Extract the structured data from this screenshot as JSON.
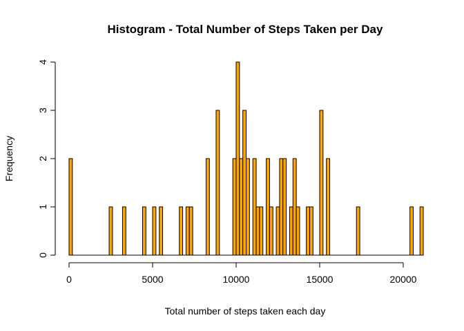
{
  "chart_data": {
    "type": "bar",
    "title": "Histogram - Total Number of Steps Taken per Day",
    "xlabel": "Total number of steps taken each day",
    "ylabel": "Frequency",
    "bar_color": "#FFA500",
    "edge_color": "#000000",
    "bin_width": 200,
    "xlim": [
      0,
      21200
    ],
    "ylim": [
      0,
      4
    ],
    "xticks": [
      0,
      5000,
      10000,
      15000,
      20000
    ],
    "xtick_labels": [
      "0",
      "5000",
      "10000",
      "15000",
      "20000"
    ],
    "yticks": [
      0,
      1,
      2,
      3,
      4
    ],
    "ytick_labels": [
      "0",
      "1",
      "2",
      "3",
      "4"
    ],
    "grid": false,
    "bins": [
      {
        "x0": 0,
        "x1": 200,
        "count": 2
      },
      {
        "x0": 2400,
        "x1": 2600,
        "count": 1
      },
      {
        "x0": 3200,
        "x1": 3400,
        "count": 1
      },
      {
        "x0": 4400,
        "x1": 4600,
        "count": 1
      },
      {
        "x0": 5000,
        "x1": 5200,
        "count": 1
      },
      {
        "x0": 5400,
        "x1": 5600,
        "count": 1
      },
      {
        "x0": 6600,
        "x1": 6800,
        "count": 1
      },
      {
        "x0": 7000,
        "x1": 7200,
        "count": 1
      },
      {
        "x0": 7200,
        "x1": 7400,
        "count": 1
      },
      {
        "x0": 8200,
        "x1": 8400,
        "count": 2
      },
      {
        "x0": 8800,
        "x1": 9000,
        "count": 3
      },
      {
        "x0": 9800,
        "x1": 10000,
        "count": 2
      },
      {
        "x0": 10000,
        "x1": 10200,
        "count": 4
      },
      {
        "x0": 10200,
        "x1": 10400,
        "count": 2
      },
      {
        "x0": 10400,
        "x1": 10600,
        "count": 3
      },
      {
        "x0": 10600,
        "x1": 10800,
        "count": 2
      },
      {
        "x0": 11000,
        "x1": 11200,
        "count": 2
      },
      {
        "x0": 11200,
        "x1": 11400,
        "count": 1
      },
      {
        "x0": 11400,
        "x1": 11600,
        "count": 1
      },
      {
        "x0": 11800,
        "x1": 12000,
        "count": 2
      },
      {
        "x0": 12000,
        "x1": 12200,
        "count": 1
      },
      {
        "x0": 12400,
        "x1": 12600,
        "count": 1
      },
      {
        "x0": 12600,
        "x1": 12800,
        "count": 2
      },
      {
        "x0": 12800,
        "x1": 13000,
        "count": 2
      },
      {
        "x0": 13200,
        "x1": 13400,
        "count": 1
      },
      {
        "x0": 13400,
        "x1": 13600,
        "count": 2
      },
      {
        "x0": 13600,
        "x1": 13800,
        "count": 1
      },
      {
        "x0": 14200,
        "x1": 14400,
        "count": 1
      },
      {
        "x0": 14400,
        "x1": 14600,
        "count": 1
      },
      {
        "x0": 15000,
        "x1": 15200,
        "count": 3
      },
      {
        "x0": 15400,
        "x1": 15600,
        "count": 2
      },
      {
        "x0": 17200,
        "x1": 17400,
        "count": 1
      },
      {
        "x0": 20400,
        "x1": 20600,
        "count": 1
      },
      {
        "x0": 21000,
        "x1": 21200,
        "count": 1
      }
    ]
  }
}
